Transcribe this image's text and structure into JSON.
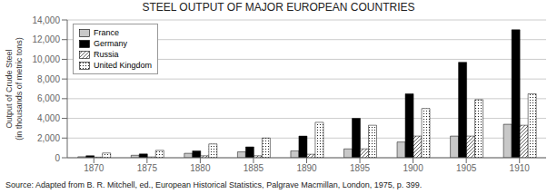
{
  "chart_data": {
    "type": "bar",
    "title": "STEEL OUTPUT OF MAJOR EUROPEAN COUNTRIES",
    "ylabel": "Output of Crude Steel\n(in thousands of metric tons)",
    "categories": [
      "1870",
      "1875",
      "1880",
      "1885",
      "1890",
      "1895",
      "1900",
      "1905",
      "1910"
    ],
    "series": [
      {
        "name": "France",
        "color": "#c8c8c8",
        "values": [
          100,
          250,
          450,
          600,
          700,
          900,
          1600,
          2200,
          3400
        ]
      },
      {
        "name": "Germany",
        "color": "#000000",
        "values": [
          200,
          380,
          700,
          1100,
          2200,
          4000,
          6500,
          9700,
          13000
        ]
      },
      {
        "name": "Russia",
        "color": "#ffffff",
        "values": [
          60,
          80,
          200,
          200,
          350,
          900,
          2200,
          2200,
          3300
        ]
      },
      {
        "name": "United Kingdom",
        "color": "#ffffff",
        "values": [
          480,
          750,
          1400,
          2000,
          3600,
          3300,
          5000,
          5900,
          6500
        ]
      }
    ],
    "ylim": [
      0,
      14000
    ],
    "yticks": [
      0,
      {
        "value": 2000,
        "label": "2,000"
      },
      {
        "value": 4000,
        "label": "4,000"
      },
      {
        "value": 6000,
        "label": "6,000"
      },
      {
        "value": 8000,
        "label": "8,000"
      },
      {
        "value": 10000,
        "label": "10,000"
      },
      {
        "value": 12000,
        "label": "12,000"
      },
      {
        "value": 14000,
        "label": "14,000"
      }
    ],
    "grid": true,
    "legend": "upper left",
    "annotations": [
      "Source: Adapted from B. R. Mitchell, ed., European Historical Statistics, Palgrave Macmillan, London, 1975, p. 399."
    ]
  }
}
